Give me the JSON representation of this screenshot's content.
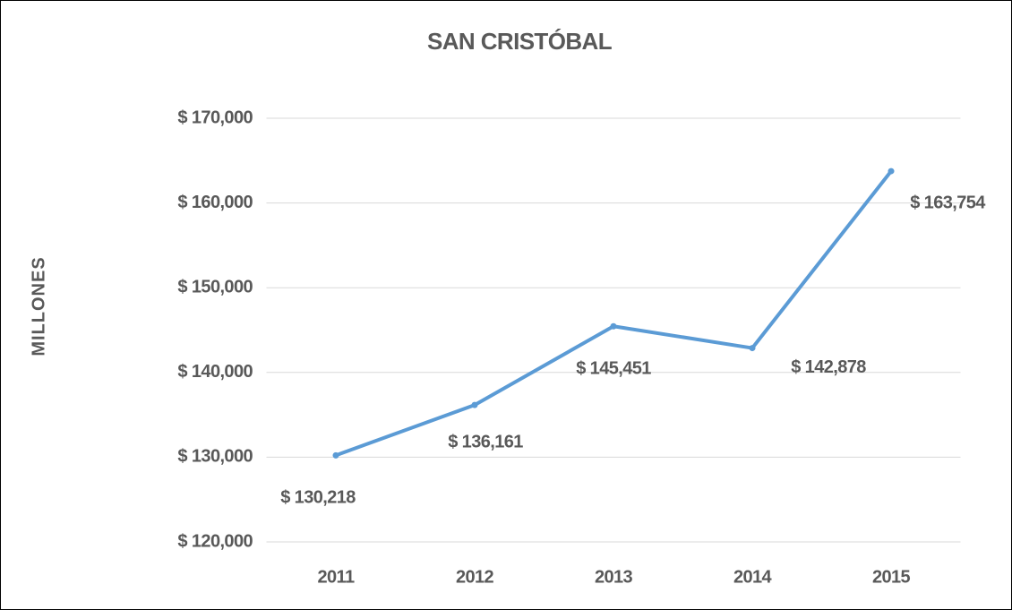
{
  "chart_data": {
    "type": "line",
    "title": "SAN CRISTÓBAL",
    "y_label": "MILLONES",
    "categories": [
      "2011",
      "2012",
      "2013",
      "2014",
      "2015"
    ],
    "series": [
      {
        "name": "San Cristóbal",
        "color": "#5b9bd5",
        "values": [
          130218,
          136161,
          145451,
          142878,
          163754
        ],
        "value_labels": [
          "$ 130,218",
          "$ 136,161",
          "$ 145,451",
          "$ 142,878",
          "$ 163,754"
        ]
      }
    ],
    "ylim": [
      120000,
      170000
    ],
    "yticks": [
      {
        "value": 120000,
        "label": "$ 120,000"
      },
      {
        "value": 130000,
        "label": "$ 130,000"
      },
      {
        "value": 140000,
        "label": "$ 140,000"
      },
      {
        "value": 150000,
        "label": "$ 150,000"
      },
      {
        "value": 160000,
        "label": "$ 160,000"
      },
      {
        "value": 170000,
        "label": "$ 170,000"
      }
    ],
    "grid": true
  }
}
